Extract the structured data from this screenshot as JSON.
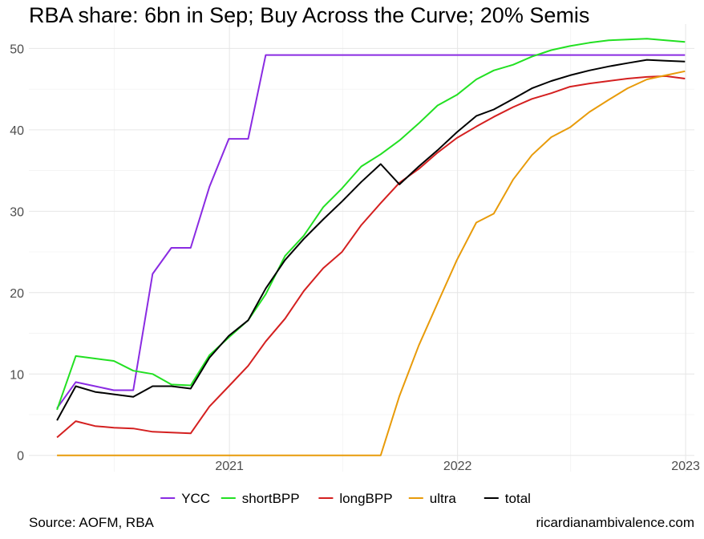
{
  "title": "RBA share: 6bn in Sep; Buy Across the Curve; 20% Semis",
  "source": "Source: AOFM, RBA",
  "attribution": "ricardianambivalence.com",
  "chart_data": {
    "type": "line",
    "x_axis": {
      "type": "date",
      "lim": [
        "2020-02-15",
        "2023-01-15"
      ],
      "ticks": [
        "2021-01-01",
        "2022-01-01",
        "2023-01-01"
      ],
      "tick_labels": [
        "2021",
        "2022",
        "2023"
      ],
      "minor_ticks": [
        "2020-07-01",
        "2021-07-01",
        "2022-07-01"
      ]
    },
    "y_axis": {
      "lim": [
        -2,
        53
      ],
      "ticks": [
        0,
        10,
        20,
        30,
        40,
        50
      ],
      "minor_ticks": [
        5,
        15,
        25,
        35,
        45
      ]
    },
    "grid": true,
    "legend_position": "bottom",
    "x": [
      "2020-03-31",
      "2020-04-30",
      "2020-05-31",
      "2020-06-30",
      "2020-07-31",
      "2020-08-31",
      "2020-09-30",
      "2020-10-31",
      "2020-11-30",
      "2020-12-31",
      "2021-01-31",
      "2021-02-28",
      "2021-03-31",
      "2021-04-30",
      "2021-05-31",
      "2021-06-30",
      "2021-07-31",
      "2021-08-31",
      "2021-09-30",
      "2021-10-31",
      "2021-11-30",
      "2021-12-31",
      "2022-01-31",
      "2022-02-28",
      "2022-03-31",
      "2022-04-30",
      "2022-05-31",
      "2022-06-30",
      "2022-07-31",
      "2022-08-31",
      "2022-09-30",
      "2022-10-31",
      "2022-11-30",
      "2022-12-31"
    ],
    "series": [
      {
        "name": "YCC",
        "color": "#8A2BE2",
        "values": [
          5.8,
          9.0,
          8.5,
          8.0,
          8.0,
          22.3,
          25.5,
          25.5,
          33.0,
          38.9,
          38.9,
          49.2,
          49.2,
          49.2,
          49.2,
          49.2,
          49.2,
          49.2,
          49.2,
          49.2,
          49.2,
          49.2,
          49.2,
          49.2,
          49.2,
          49.2,
          49.2,
          49.2,
          49.2,
          49.2,
          49.2,
          49.2,
          49.2,
          49.2
        ]
      },
      {
        "name": "shortBPP",
        "color": "#22E022",
        "values": [
          5.6,
          12.2,
          11.9,
          11.6,
          10.4,
          10.0,
          8.7,
          8.6,
          12.3,
          14.5,
          16.6,
          19.8,
          24.5,
          27.0,
          30.5,
          32.8,
          35.5,
          37.0,
          38.7,
          40.8,
          43.0,
          44.3,
          46.2,
          47.3,
          48.0,
          49.0,
          49.8,
          50.3,
          50.7,
          51.0,
          51.1,
          51.2,
          51.0,
          50.8
        ]
      },
      {
        "name": "longBPP",
        "color": "#D42020",
        "values": [
          2.2,
          4.2,
          3.6,
          3.4,
          3.3,
          2.9,
          2.8,
          2.7,
          6.0,
          8.5,
          11.0,
          14.0,
          16.8,
          20.2,
          23.0,
          25.0,
          28.3,
          31.0,
          33.5,
          35.2,
          37.2,
          39.0,
          40.4,
          41.6,
          42.8,
          43.8,
          44.5,
          45.3,
          45.7,
          46.0,
          46.3,
          46.5,
          46.6,
          46.3
        ]
      },
      {
        "name": "ultra",
        "color": "#E89B0A",
        "values": [
          0,
          0,
          0,
          0,
          0,
          0,
          0,
          0,
          0,
          0,
          0,
          0,
          0,
          0,
          0,
          0,
          0,
          0,
          7.3,
          13.5,
          18.7,
          24.0,
          28.6,
          29.7,
          33.9,
          36.9,
          39.1,
          40.3,
          42.2,
          43.7,
          45.1,
          46.2,
          46.7,
          47.2
        ]
      },
      {
        "name": "total",
        "color": "#000000",
        "values": [
          4.3,
          8.5,
          7.8,
          7.5,
          7.2,
          8.5,
          8.5,
          8.2,
          12.0,
          14.7,
          16.6,
          20.5,
          24.0,
          26.6,
          29.0,
          31.2,
          33.6,
          35.8,
          33.3,
          35.5,
          37.5,
          39.7,
          41.7,
          42.5,
          43.8,
          45.1,
          46.0,
          46.7,
          47.3,
          47.8,
          48.2,
          48.6,
          48.5,
          48.4
        ]
      }
    ]
  }
}
